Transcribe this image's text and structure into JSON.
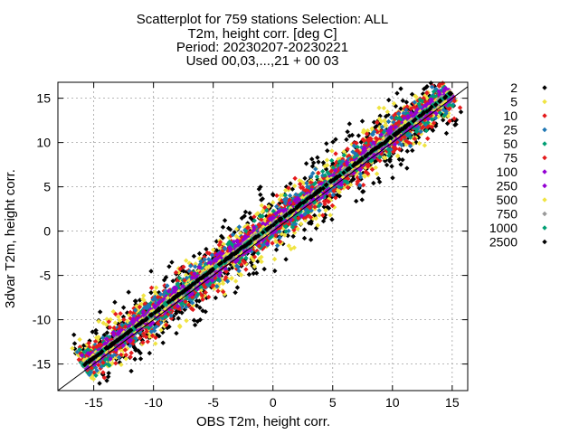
{
  "chart_data": {
    "type": "scatter",
    "title_lines": [
      "Scatterplot for  759 stations Selection: ALL",
      "T2m, height corr. [deg C]",
      "Period: 20230207-20230221",
      "Used 00,03,...,21 + 00 03"
    ],
    "xlabel": "OBS T2m, height corr.",
    "ylabel": "3dvar T2m, height corr.",
    "xlim": [
      -18,
      16.3
    ],
    "ylim": [
      -18,
      16.8
    ],
    "xticks": [
      -15,
      -10,
      -5,
      0,
      5,
      10,
      15
    ],
    "yticks": [
      -15,
      -10,
      -5,
      0,
      5,
      10,
      15
    ],
    "grid": true,
    "diagonal_line": true,
    "legend_position": "right-outside",
    "series": [
      {
        "name": "2",
        "color": "#000000",
        "band": 6.2
      },
      {
        "name": "5",
        "color": "#f0e442",
        "band": 5.0
      },
      {
        "name": "10",
        "color": "#e41a1c",
        "band": 3.9
      },
      {
        "name": "25",
        "color": "#1f77b4",
        "band": 3.2
      },
      {
        "name": "50",
        "color": "#009e73",
        "band": 2.5
      },
      {
        "name": "75",
        "color": "#e41a1c",
        "band": 2.1
      },
      {
        "name": "100",
        "color": "#9400d3",
        "band": 1.7
      },
      {
        "name": "250",
        "color": "#9400d3",
        "band": 1.2
      },
      {
        "name": "500",
        "color": "#f0e442",
        "band": 0.8
      },
      {
        "name": "750",
        "color": "#999999",
        "band": 0.5
      },
      {
        "name": "1000",
        "color": "#009e73",
        "band": 0.3
      },
      {
        "name": "2500",
        "color": "#000000",
        "band": 0.15
      }
    ]
  }
}
